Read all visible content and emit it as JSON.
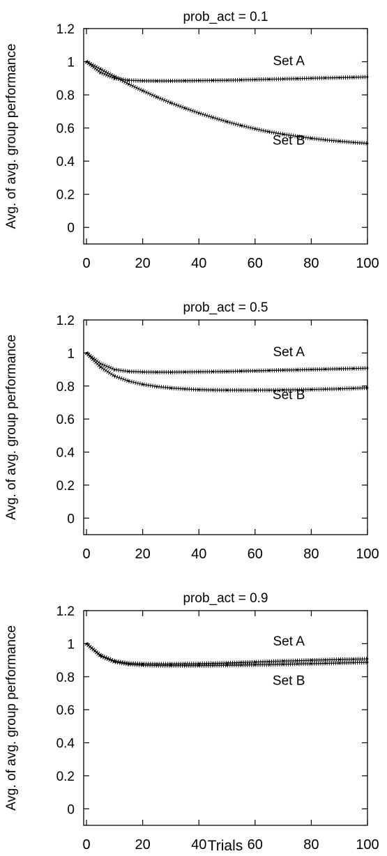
{
  "figure": {
    "xlabel": "Trials",
    "ylabel": "Avg. of avg. group performance"
  },
  "chart_data": [
    {
      "type": "line",
      "title": "prob_act = 0.1",
      "xlabel": "",
      "ylabel": "Avg. of avg. group performance",
      "xlim": [
        -1,
        100
      ],
      "ylim": [
        -0.1,
        1.2
      ],
      "xticks": [
        0,
        20,
        40,
        60,
        80,
        100
      ],
      "yticks": [
        0,
        0.2,
        0.4,
        0.6,
        0.8,
        1,
        1.2
      ],
      "grid": false,
      "legend": "none",
      "x": [
        0,
        5,
        10,
        15,
        20,
        25,
        30,
        35,
        40,
        45,
        50,
        55,
        60,
        65,
        70,
        75,
        80,
        85,
        90,
        95,
        100
      ],
      "series": [
        {
          "name": "Set A",
          "label_at": [
            72,
            0.98
          ],
          "values": [
            1.0,
            0.935,
            0.9,
            0.888,
            0.885,
            0.884,
            0.884,
            0.885,
            0.886,
            0.887,
            0.888,
            0.89,
            0.892,
            0.894,
            0.896,
            0.898,
            0.9,
            0.902,
            0.904,
            0.906,
            0.908
          ]
        },
        {
          "name": "Set B",
          "label_at": [
            72,
            0.5
          ],
          "values": [
            1.0,
            0.955,
            0.91,
            0.865,
            0.825,
            0.787,
            0.752,
            0.72,
            0.69,
            0.663,
            0.638,
            0.615,
            0.595,
            0.577,
            0.562,
            0.549,
            0.538,
            0.528,
            0.52,
            0.513,
            0.507
          ]
        }
      ]
    },
    {
      "type": "line",
      "title": "prob_act = 0.5",
      "xlabel": "",
      "ylabel": "Avg. of avg. group performance",
      "xlim": [
        -1,
        100
      ],
      "ylim": [
        -0.1,
        1.2
      ],
      "xticks": [
        0,
        20,
        40,
        60,
        80,
        100
      ],
      "yticks": [
        0,
        0.2,
        0.4,
        0.6,
        0.8,
        1,
        1.2
      ],
      "grid": false,
      "legend": "none",
      "x": [
        0,
        5,
        10,
        15,
        20,
        25,
        30,
        35,
        40,
        45,
        50,
        55,
        60,
        65,
        70,
        75,
        80,
        85,
        90,
        95,
        100
      ],
      "series": [
        {
          "name": "Set A",
          "label_at": [
            72,
            0.98
          ],
          "values": [
            1.0,
            0.935,
            0.9,
            0.888,
            0.885,
            0.884,
            0.884,
            0.885,
            0.886,
            0.887,
            0.888,
            0.89,
            0.892,
            0.894,
            0.896,
            0.898,
            0.9,
            0.902,
            0.904,
            0.906,
            0.908
          ]
        },
        {
          "name": "Set B",
          "label_at": [
            72,
            0.72
          ],
          "values": [
            1.0,
            0.915,
            0.86,
            0.83,
            0.81,
            0.797,
            0.788,
            0.782,
            0.778,
            0.776,
            0.775,
            0.775,
            0.775,
            0.775,
            0.776,
            0.777,
            0.779,
            0.781,
            0.783,
            0.786,
            0.789
          ]
        }
      ]
    },
    {
      "type": "line",
      "title": "prob_act = 0.9",
      "xlabel": "Trials",
      "ylabel": "Avg. of avg. group performance",
      "xlim": [
        -1,
        100
      ],
      "ylim": [
        -0.1,
        1.2
      ],
      "xticks": [
        0,
        20,
        40,
        60,
        80,
        100
      ],
      "yticks": [
        0,
        0.2,
        0.4,
        0.6,
        0.8,
        1,
        1.2
      ],
      "grid": false,
      "legend": "none",
      "x": [
        0,
        5,
        10,
        15,
        20,
        25,
        30,
        35,
        40,
        45,
        50,
        55,
        60,
        65,
        70,
        75,
        80,
        85,
        90,
        95,
        100
      ],
      "series": [
        {
          "name": "Set A",
          "label_at": [
            72,
            0.99
          ],
          "values": [
            1.0,
            0.93,
            0.895,
            0.882,
            0.878,
            0.877,
            0.877,
            0.878,
            0.879,
            0.881,
            0.883,
            0.886,
            0.889,
            0.892,
            0.895,
            0.897,
            0.9,
            0.902,
            0.904,
            0.906,
            0.908
          ]
        },
        {
          "name": "Set B",
          "label_at": [
            72,
            0.75
          ],
          "values": [
            1.0,
            0.925,
            0.89,
            0.875,
            0.87,
            0.868,
            0.867,
            0.867,
            0.867,
            0.868,
            0.869,
            0.87,
            0.872,
            0.873,
            0.875,
            0.877,
            0.879,
            0.881,
            0.883,
            0.885,
            0.887
          ]
        }
      ]
    }
  ]
}
